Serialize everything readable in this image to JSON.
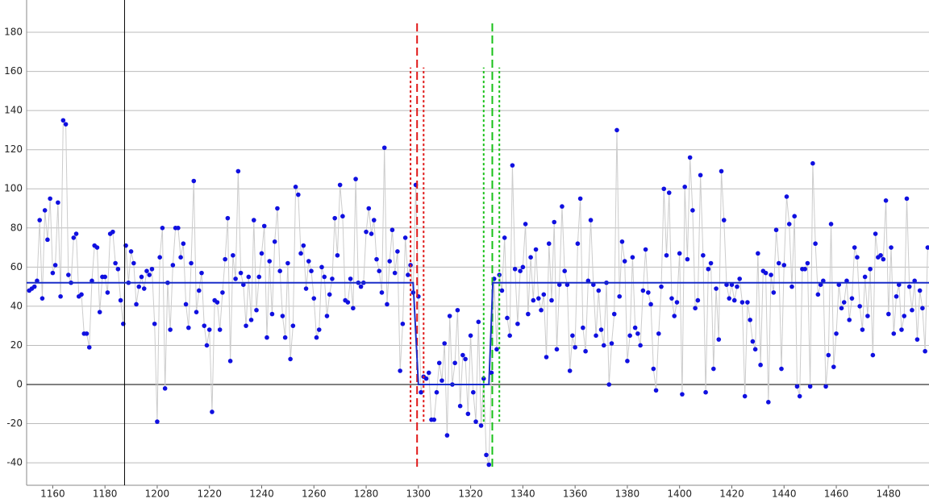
{
  "chart_data": {
    "type": "scatter",
    "xlim": [
      1150,
      1495.5
    ],
    "ylim": [
      -51.5,
      196.5
    ],
    "xticks": [
      1160,
      1180,
      1200,
      1220,
      1240,
      1260,
      1280,
      1300,
      1320,
      1340,
      1360,
      1380,
      1400,
      1420,
      1440,
      1460,
      1480
    ],
    "yticks": [
      -40,
      -20,
      0,
      20,
      40,
      60,
      80,
      100,
      120,
      140,
      160,
      180
    ],
    "grid": true,
    "series": [
      {
        "color": "#1010e0",
        "line_color": "#cccccc",
        "x": [
          1151,
          1152,
          1153,
          1154,
          1155,
          1156,
          1157,
          1158,
          1159,
          1160,
          1161,
          1162,
          1163,
          1164,
          1165,
          1166,
          1167,
          1168,
          1169,
          1170,
          1171,
          1172,
          1173,
          1174,
          1175,
          1176,
          1177,
          1178,
          1179,
          1180,
          1181,
          1182,
          1183,
          1184,
          1185,
          1186,
          1187,
          1188,
          1189,
          1190,
          1191,
          1192,
          1193,
          1194,
          1195,
          1196,
          1197,
          1198,
          1199,
          1200,
          1201,
          1202,
          1203,
          1204,
          1205,
          1206,
          1207,
          1208,
          1209,
          1210,
          1211,
          1212,
          1213,
          1214,
          1215,
          1216,
          1217,
          1218,
          1219,
          1220,
          1221,
          1222,
          1223,
          1224,
          1225,
          1226,
          1227,
          1228,
          1229,
          1230,
          1231,
          1232,
          1233,
          1234,
          1235,
          1236,
          1237,
          1238,
          1239,
          1240,
          1241,
          1242,
          1243,
          1244,
          1245,
          1246,
          1247,
          1248,
          1249,
          1250,
          1251,
          1252,
          1253,
          1254,
          1255,
          1256,
          1257,
          1258,
          1259,
          1260,
          1261,
          1262,
          1263,
          1264,
          1265,
          1266,
          1267,
          1268,
          1269,
          1270,
          1271,
          1272,
          1273,
          1274,
          1275,
          1276,
          1277,
          1278,
          1279,
          1280,
          1281,
          1282,
          1283,
          1284,
          1285,
          1286,
          1287,
          1288,
          1289,
          1290,
          1291,
          1292,
          1293,
          1294,
          1295,
          1296,
          1297,
          1298,
          1299,
          1300,
          1301,
          1302,
          1303,
          1304,
          1305,
          1306,
          1307,
          1308,
          1309,
          1310,
          1311,
          1312,
          1313,
          1314,
          1315,
          1316,
          1317,
          1318,
          1319,
          1320,
          1321,
          1322,
          1323,
          1324,
          1325,
          1326,
          1327,
          1328,
          1329,
          1330,
          1331,
          1332,
          1333,
          1334,
          1335,
          1336,
          1337,
          1338,
          1339,
          1340,
          1341,
          1342,
          1343,
          1344,
          1345,
          1346,
          1347,
          1348,
          1349,
          1350,
          1351,
          1352,
          1353,
          1354,
          1355,
          1356,
          1357,
          1358,
          1359,
          1360,
          1361,
          1362,
          1363,
          1364,
          1365,
          1366,
          1367,
          1368,
          1369,
          1370,
          1371,
          1372,
          1373,
          1374,
          1375,
          1376,
          1377,
          1378,
          1379,
          1380,
          1381,
          1382,
          1383,
          1384,
          1385,
          1386,
          1387,
          1388,
          1389,
          1390,
          1391,
          1392,
          1393,
          1394,
          1395,
          1396,
          1397,
          1398,
          1399,
          1400,
          1401,
          1402,
          1403,
          1404,
          1405,
          1406,
          1407,
          1408,
          1409,
          1410,
          1411,
          1412,
          1413,
          1414,
          1415,
          1416,
          1417,
          1418,
          1419,
          1420,
          1421,
          1422,
          1423,
          1424,
          1425,
          1426,
          1427,
          1428,
          1429,
          1430,
          1431,
          1432,
          1433,
          1434,
          1435,
          1436,
          1437,
          1438,
          1439,
          1440,
          1441,
          1442,
          1443,
          1444,
          1445,
          1446,
          1447,
          1448,
          1449,
          1450,
          1451,
          1452,
          1453,
          1454,
          1455,
          1456,
          1457,
          1458,
          1459,
          1460,
          1461,
          1462,
          1463,
          1464,
          1465,
          1466,
          1467,
          1468,
          1469,
          1470,
          1471,
          1472,
          1473,
          1474,
          1475,
          1476,
          1477,
          1478,
          1479,
          1480,
          1481,
          1482,
          1483,
          1484,
          1485,
          1486,
          1487,
          1488,
          1489,
          1490,
          1491,
          1492,
          1493,
          1494,
          1495
        ],
        "values": [
          48,
          49,
          50,
          53,
          84,
          44,
          89,
          74,
          95,
          57,
          61,
          93,
          45,
          135,
          133,
          56,
          52,
          75,
          77,
          45,
          46,
          26,
          26,
          19,
          53,
          71,
          70,
          37,
          55,
          55,
          47,
          77,
          78,
          62,
          59,
          43,
          31,
          71,
          52,
          68,
          62,
          41,
          50,
          55,
          49,
          58,
          56,
          59,
          31,
          -19,
          65,
          80,
          -2,
          52,
          28,
          61,
          80,
          80,
          65,
          72,
          41,
          29,
          62,
          104,
          37,
          48,
          57,
          30,
          20,
          28,
          -14,
          43,
          42,
          28,
          47,
          64,
          85,
          12,
          66,
          54,
          109,
          57,
          51,
          30,
          55,
          33,
          84,
          38,
          55,
          67,
          81,
          24,
          63,
          36,
          73,
          90,
          58,
          35,
          24,
          62,
          13,
          30,
          101,
          97,
          67,
          71,
          49,
          63,
          58,
          44,
          24,
          28,
          60,
          55,
          35,
          46,
          54,
          85,
          66,
          102,
          86,
          43,
          42,
          54,
          39,
          105,
          52,
          50,
          52,
          78,
          90,
          77,
          84,
          64,
          58,
          47,
          121,
          41,
          63,
          79,
          57,
          68,
          7,
          31,
          75,
          56,
          61,
          47,
          102,
          45,
          -4,
          4,
          3,
          6,
          -18,
          -18,
          -4,
          11,
          2,
          21,
          -26,
          35,
          0,
          11,
          38,
          -11,
          15,
          13,
          -15,
          25,
          -4,
          -19,
          32,
          -21,
          3,
          -36,
          -41,
          6,
          54,
          18,
          56,
          48,
          75,
          34,
          25,
          112,
          59,
          31,
          58,
          60,
          82,
          36,
          65,
          43,
          69,
          44,
          38,
          46,
          14,
          72,
          43,
          83,
          18,
          51,
          91,
          58,
          51,
          7,
          25,
          19,
          72,
          95,
          29,
          17,
          53,
          84,
          51,
          25,
          48,
          28,
          20,
          52,
          0,
          21,
          36,
          130,
          45,
          73,
          63,
          12,
          25,
          65,
          29,
          26,
          20,
          48,
          69,
          47,
          41,
          8,
          -3,
          26,
          50,
          100,
          66,
          98,
          44,
          35,
          42,
          67,
          -5,
          101,
          64,
          116,
          89,
          39,
          43,
          107,
          66,
          -4,
          59,
          62,
          8,
          49,
          23,
          109,
          84,
          51,
          44,
          51,
          43,
          50,
          54,
          42,
          -6,
          42,
          33,
          22,
          18,
          67,
          10,
          58,
          57,
          -9,
          56,
          47,
          79,
          62,
          8,
          61,
          96,
          82,
          50,
          86,
          -1,
          -6,
          59,
          59,
          62,
          -1,
          113,
          72,
          46,
          51,
          53,
          -1,
          15,
          82,
          9,
          26,
          51,
          39,
          42,
          53,
          33,
          44,
          70,
          65,
          40,
          28,
          55,
          35,
          59,
          15,
          77,
          65,
          66,
          64,
          94,
          36,
          70,
          26,
          45,
          51,
          28,
          35,
          95,
          50,
          38,
          53,
          23,
          48,
          39,
          17,
          70
        ]
      },
      {
        "type": "line",
        "color": "#1a2ec8",
        "x": [
          1150,
          1298,
          1300,
          1327,
          1328.5,
          1495.5
        ],
        "values": [
          52,
          52,
          0,
          0,
          52,
          52
        ]
      }
    ],
    "hlines": [
      {
        "y": 0,
        "color": "#000000"
      }
    ],
    "vlines": [
      {
        "x": 1187.5,
        "color": "#000000",
        "style": "solid"
      },
      {
        "x": 1299.5,
        "ymin": -42,
        "ymax": 185,
        "color": "#e01818",
        "style": "dashed"
      },
      {
        "x": 1297,
        "ymin": -19,
        "ymax": 162,
        "color": "#e01818",
        "style": "dotted"
      },
      {
        "x": 1302,
        "ymin": -19,
        "ymax": 162,
        "color": "#e01818",
        "style": "dotted"
      },
      {
        "x": 1328.3,
        "ymin": -42,
        "ymax": 185,
        "color": "#18c018",
        "style": "dashed"
      },
      {
        "x": 1325,
        "ymin": -19,
        "ymax": 162,
        "color": "#18c018",
        "style": "dotted"
      },
      {
        "x": 1331,
        "ymin": -19,
        "ymax": 162,
        "color": "#18c018",
        "style": "dotted"
      }
    ]
  }
}
